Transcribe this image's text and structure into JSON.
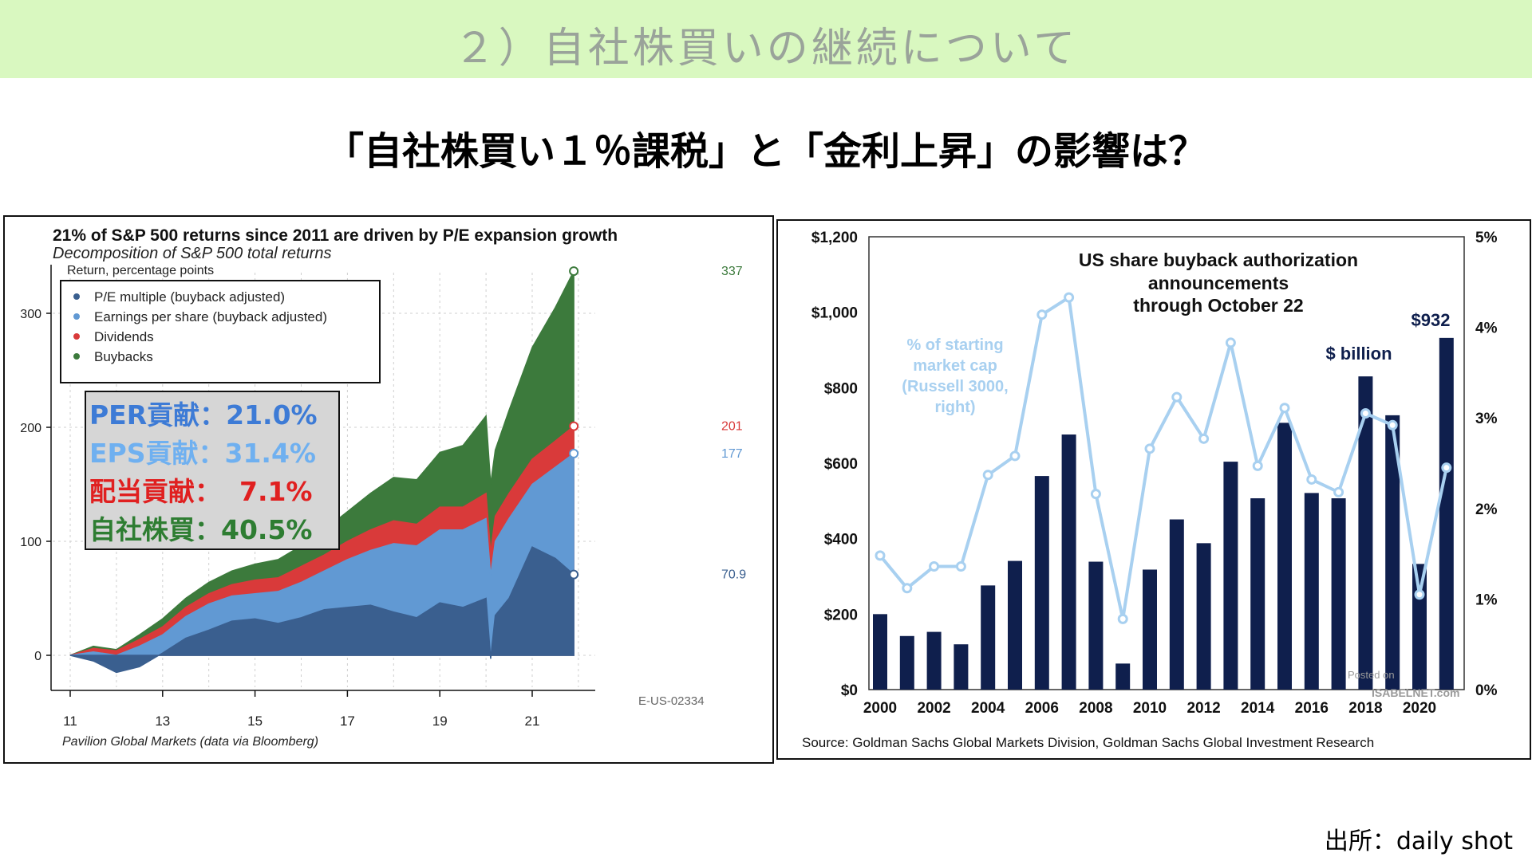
{
  "header": {
    "title": "２）自社株買いの継続について"
  },
  "subtitle": "「自社株買い１％課税」と「金利上昇」の影響は？",
  "source": "出所：daily shot",
  "left_chart": {
    "title": "21% of S&P 500 returns since 2011 are driven by P/E expansion growth",
    "subtitle": "Decomposition of S&P 500 total returns",
    "unit": "Return, percentage points",
    "credit": "Pavilion Global Markets (data via Bloomberg)",
    "code": "E-US-02334",
    "overlay": [
      {
        "text": "PER貢献：21.0%",
        "color": "#3d7bd6"
      },
      {
        "text": "EPS貢献：31.4%",
        "color": "#6fb0f0"
      },
      {
        "text": "配当貢献：  7.1%",
        "color": "#e02020"
      },
      {
        "text": "自社株買：40.5%",
        "color": "#2e7d32"
      }
    ]
  },
  "right_chart": {
    "title_lines": [
      "US share buyback authorization",
      "announcements",
      "through October 22"
    ],
    "bar_label": "$ billion",
    "line_label_lines": [
      "%  of starting",
      "market cap",
      "(Russell  3000,",
      "right)"
    ],
    "peak_label": "$932",
    "source": "Source: Goldman Sachs Global Markets Division, Goldman Sachs Global Investment Research",
    "watermark_lines": [
      "Posted on",
      "ISABELNET.com"
    ]
  },
  "chart_data": [
    {
      "type": "area",
      "title": "21% of S&P 500 returns since 2011 are driven by P/E expansion growth",
      "subtitle": "Decomposition of S&P 500 total returns",
      "ylabel": "Return, percentage points",
      "xlabel": "",
      "x_ticks": [
        "11",
        "13",
        "15",
        "17",
        "19",
        "21"
      ],
      "y_ticks": [
        0,
        100,
        200,
        300
      ],
      "ylim": [
        -30,
        350
      ],
      "xlim": [
        10.6,
        22.4
      ],
      "legend_position": "top-left",
      "grid": true,
      "x": [
        11.0,
        11.5,
        12.0,
        12.5,
        13.0,
        13.5,
        14.0,
        14.5,
        15.0,
        15.5,
        16.0,
        16.5,
        17.0,
        17.5,
        18.0,
        18.5,
        19.0,
        19.5,
        20.0,
        20.1,
        20.2,
        20.5,
        21.0,
        21.5,
        21.9
      ],
      "series": [
        {
          "name": "P/E multiple (buyback adjusted)",
          "color": "#3a5f8f",
          "values": [
            0,
            -5,
            -15,
            -10,
            2,
            15,
            22,
            30,
            32,
            28,
            33,
            40,
            42,
            44,
            38,
            33,
            46,
            42,
            50,
            -3,
            35,
            50,
            95,
            85,
            70.9
          ]
        },
        {
          "name": "Earnings per share (buyback adjusted)",
          "color": "#6199d3",
          "values": [
            0,
            3,
            0,
            8,
            18,
            34,
            45,
            52,
            54,
            56,
            64,
            74,
            84,
            92,
            98,
            96,
            110,
            110,
            120,
            70,
            100,
            120,
            150,
            165,
            177
          ]
        },
        {
          "name": "Dividends",
          "color": "#d93a3a",
          "values": [
            0,
            6,
            4,
            14,
            25,
            42,
            54,
            62,
            66,
            68,
            78,
            88,
            100,
            110,
            118,
            115,
            130,
            130,
            142,
            90,
            122,
            142,
            172,
            188,
            201
          ]
        },
        {
          "name": "Buybacks",
          "color": "#3c7a3c",
          "values": [
            0,
            8,
            5,
            18,
            32,
            50,
            64,
            74,
            80,
            84,
            96,
            110,
            126,
            142,
            156,
            154,
            178,
            184,
            210,
            150,
            180,
            215,
            270,
            305,
            337
          ]
        }
      ],
      "end_labels": [
        {
          "series": "Buybacks",
          "text": "337"
        },
        {
          "series": "Dividends",
          "text": "201"
        },
        {
          "series": "Earnings per share (buyback adjusted)",
          "text": "177"
        },
        {
          "series": "P/E multiple (buyback adjusted)",
          "text": "70.9"
        }
      ]
    },
    {
      "type": "bar",
      "title": "US share buyback authorization announcements through October 22",
      "categories": [
        "2000",
        "2001",
        "2002",
        "2003",
        "2004",
        "2005",
        "2006",
        "2007",
        "2008",
        "2009",
        "2010",
        "2011",
        "2012",
        "2013",
        "2014",
        "2015",
        "2016",
        "2017",
        "2018",
        "2019",
        "2020",
        "2021"
      ],
      "x_tick_labels": [
        "2000",
        "2002",
        "2004",
        "2006",
        "2008",
        "2010",
        "2012",
        "2014",
        "2016",
        "2018",
        "2020"
      ],
      "series": [
        {
          "name": "$ billion",
          "axis": "left",
          "color": "#0f1f4d",
          "values": [
            200,
            142,
            153,
            120,
            276,
            341,
            566,
            676,
            339,
            69,
            318,
            451,
            388,
            604,
            507,
            707,
            521,
            507,
            830,
            727,
            333,
            932
          ]
        },
        {
          "name": "% of starting market cap (Russell 3000, right)",
          "axis": "right",
          "color": "#a8d0f0",
          "values": [
            1.48,
            1.12,
            1.36,
            1.36,
            2.37,
            2.58,
            4.14,
            4.33,
            2.16,
            0.78,
            2.66,
            3.23,
            2.77,
            3.83,
            2.47,
            3.11,
            2.32,
            2.18,
            3.05,
            2.92,
            1.05,
            2.45
          ]
        }
      ],
      "y_left": {
        "ticks": [
          "$0",
          "$200",
          "$400",
          "$600",
          "$800",
          "$1,000",
          "$1,200"
        ],
        "ylim": [
          0,
          1200
        ]
      },
      "y_right": {
        "ticks": [
          "0%",
          "1%",
          "2%",
          "3%",
          "4%",
          "5%"
        ],
        "ylim": [
          0,
          5
        ]
      },
      "grid": false
    }
  ]
}
